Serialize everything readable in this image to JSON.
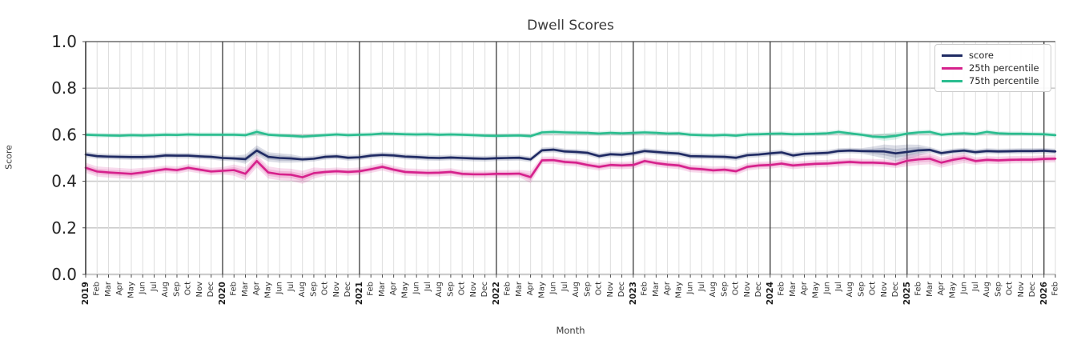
{
  "header": {
    "title": "Dwell Scores"
  },
  "axes": {
    "x_label": "Month",
    "y_label": "Score",
    "y_ticks": [
      "0.0",
      "0.2",
      "0.4",
      "0.6",
      "0.8",
      "1.0"
    ],
    "y_tick_values": [
      0.0,
      0.2,
      0.4,
      0.6,
      0.8,
      1.0
    ]
  },
  "legend": {
    "items": [
      {
        "label": "score",
        "color": "#1f2a63"
      },
      {
        "label": "25th percentile",
        "color": "#d6218c"
      },
      {
        "label": "75th percentile",
        "color": "#2abd8f"
      }
    ]
  },
  "style": {
    "minor_grid_color": "#dedede",
    "major_grid_color": "#cccccc",
    "year_line_color": "#3b3b3b",
    "spine_color": "#3a3a3a",
    "tick_label_color": "#262626",
    "month_label_color": "#333333",
    "year_label_color": "#1a1a1a"
  },
  "chart_data": {
    "type": "line",
    "title": "Dwell Scores",
    "xlabel": "Month",
    "ylabel": "Score",
    "ylim": [
      0.0,
      1.0
    ],
    "grid": true,
    "legend_position": "upper right",
    "x": [
      "2019",
      "Feb",
      "Mar",
      "Apr",
      "May",
      "Jun",
      "Jul",
      "Aug",
      "Sep",
      "Oct",
      "Nov",
      "Dec",
      "2020",
      "Feb",
      "Mar",
      "Apr",
      "May",
      "Jun",
      "Jul",
      "Aug",
      "Sep",
      "Oct",
      "Nov",
      "Dec",
      "2021",
      "Feb",
      "Mar",
      "Apr",
      "May",
      "Jun",
      "Jul",
      "Aug",
      "Sep",
      "Oct",
      "Nov",
      "Dec",
      "2022",
      "Feb",
      "Mar",
      "Apr",
      "May",
      "Jun",
      "Jul",
      "Aug",
      "Sep",
      "Oct",
      "Nov",
      "Dec",
      "2023",
      "Feb",
      "Mar",
      "Apr",
      "May",
      "Jun",
      "Jul",
      "Aug",
      "Sep",
      "Oct",
      "Nov",
      "Dec",
      "2024",
      "Feb",
      "Mar",
      "Apr",
      "May",
      "Jun",
      "Jul",
      "Aug",
      "Sep",
      "Oct",
      "Nov",
      "Dec",
      "2025",
      "Feb",
      "Mar",
      "Apr",
      "May",
      "Jun",
      "Jul",
      "Aug",
      "Sep",
      "Oct",
      "Nov",
      "Dec",
      "2026",
      "Feb"
    ],
    "bold_x_indices": [
      0,
      12,
      24,
      36,
      48,
      60,
      72,
      84
    ],
    "series": [
      {
        "name": "score",
        "color": "#1f2a63",
        "band_default": 0.012,
        "band_overrides": {
          "14": 0.02,
          "15": 0.022,
          "16": 0.02,
          "17": 0.02,
          "18": 0.018,
          "69": 0.02,
          "70": 0.03,
          "71": 0.034,
          "72": 0.032,
          "73": 0.024
        },
        "values": [
          0.515,
          0.508,
          0.506,
          0.505,
          0.504,
          0.504,
          0.506,
          0.511,
          0.51,
          0.51,
          0.507,
          0.505,
          0.5,
          0.498,
          0.495,
          0.532,
          0.505,
          0.5,
          0.498,
          0.494,
          0.497,
          0.505,
          0.507,
          0.501,
          0.503,
          0.51,
          0.513,
          0.511,
          0.506,
          0.504,
          0.501,
          0.5,
          0.502,
          0.5,
          0.498,
          0.497,
          0.499,
          0.5,
          0.501,
          0.494,
          0.533,
          0.536,
          0.528,
          0.526,
          0.522,
          0.508,
          0.516,
          0.514,
          0.52,
          0.53,
          0.526,
          0.522,
          0.519,
          0.508,
          0.507,
          0.506,
          0.505,
          0.501,
          0.512,
          0.515,
          0.52,
          0.524,
          0.511,
          0.518,
          0.52,
          0.522,
          0.53,
          0.532,
          0.53,
          0.529,
          0.528,
          0.52,
          0.526,
          0.533,
          0.535,
          0.521,
          0.528,
          0.532,
          0.525,
          0.53,
          0.528,
          0.529,
          0.53,
          0.53,
          0.531,
          0.528
        ]
      },
      {
        "name": "25th percentile",
        "color": "#d6218c",
        "band_default": 0.016,
        "band_overrides": {
          "0": 0.022,
          "1": 0.022,
          "2": 0.022,
          "3": 0.022,
          "4": 0.022,
          "5": 0.02,
          "13": 0.024,
          "14": 0.028,
          "15": 0.028,
          "16": 0.026,
          "17": 0.026,
          "18": 0.026,
          "19": 0.028,
          "20": 0.024,
          "39": 0.026,
          "72": 0.024,
          "73": 0.024,
          "74": 0.024,
          "75": 0.022,
          "76": 0.022,
          "77": 0.022
        },
        "values": [
          0.458,
          0.442,
          0.438,
          0.435,
          0.432,
          0.438,
          0.445,
          0.452,
          0.448,
          0.458,
          0.45,
          0.442,
          0.445,
          0.448,
          0.432,
          0.487,
          0.438,
          0.43,
          0.428,
          0.417,
          0.435,
          0.44,
          0.443,
          0.44,
          0.443,
          0.452,
          0.462,
          0.45,
          0.44,
          0.438,
          0.436,
          0.437,
          0.44,
          0.432,
          0.43,
          0.43,
          0.432,
          0.432,
          0.433,
          0.418,
          0.49,
          0.491,
          0.483,
          0.48,
          0.47,
          0.462,
          0.47,
          0.468,
          0.47,
          0.487,
          0.478,
          0.472,
          0.468,
          0.455,
          0.452,
          0.447,
          0.45,
          0.443,
          0.462,
          0.468,
          0.47,
          0.476,
          0.468,
          0.472,
          0.475,
          0.476,
          0.48,
          0.483,
          0.48,
          0.48,
          0.478,
          0.473,
          0.488,
          0.494,
          0.497,
          0.48,
          0.492,
          0.5,
          0.487,
          0.492,
          0.49,
          0.492,
          0.493,
          0.493,
          0.496,
          0.497
        ]
      },
      {
        "name": "75th percentile",
        "color": "#2abd8f",
        "band_default": 0.01,
        "band_overrides": {
          "15": 0.014,
          "70": 0.016,
          "71": 0.016
        },
        "values": [
          0.6,
          0.598,
          0.597,
          0.596,
          0.598,
          0.597,
          0.598,
          0.6,
          0.599,
          0.601,
          0.6,
          0.6,
          0.6,
          0.6,
          0.598,
          0.612,
          0.6,
          0.597,
          0.595,
          0.592,
          0.595,
          0.598,
          0.601,
          0.598,
          0.6,
          0.601,
          0.605,
          0.604,
          0.602,
          0.601,
          0.602,
          0.6,
          0.601,
          0.6,
          0.598,
          0.596,
          0.595,
          0.596,
          0.597,
          0.594,
          0.61,
          0.612,
          0.61,
          0.609,
          0.608,
          0.605,
          0.608,
          0.606,
          0.608,
          0.61,
          0.608,
          0.605,
          0.606,
          0.6,
          0.598,
          0.597,
          0.599,
          0.596,
          0.601,
          0.602,
          0.604,
          0.605,
          0.602,
          0.603,
          0.604,
          0.606,
          0.612,
          0.606,
          0.6,
          0.592,
          0.59,
          0.595,
          0.605,
          0.61,
          0.612,
          0.6,
          0.604,
          0.606,
          0.603,
          0.612,
          0.606,
          0.604,
          0.604,
          0.603,
          0.602,
          0.598
        ]
      }
    ]
  }
}
